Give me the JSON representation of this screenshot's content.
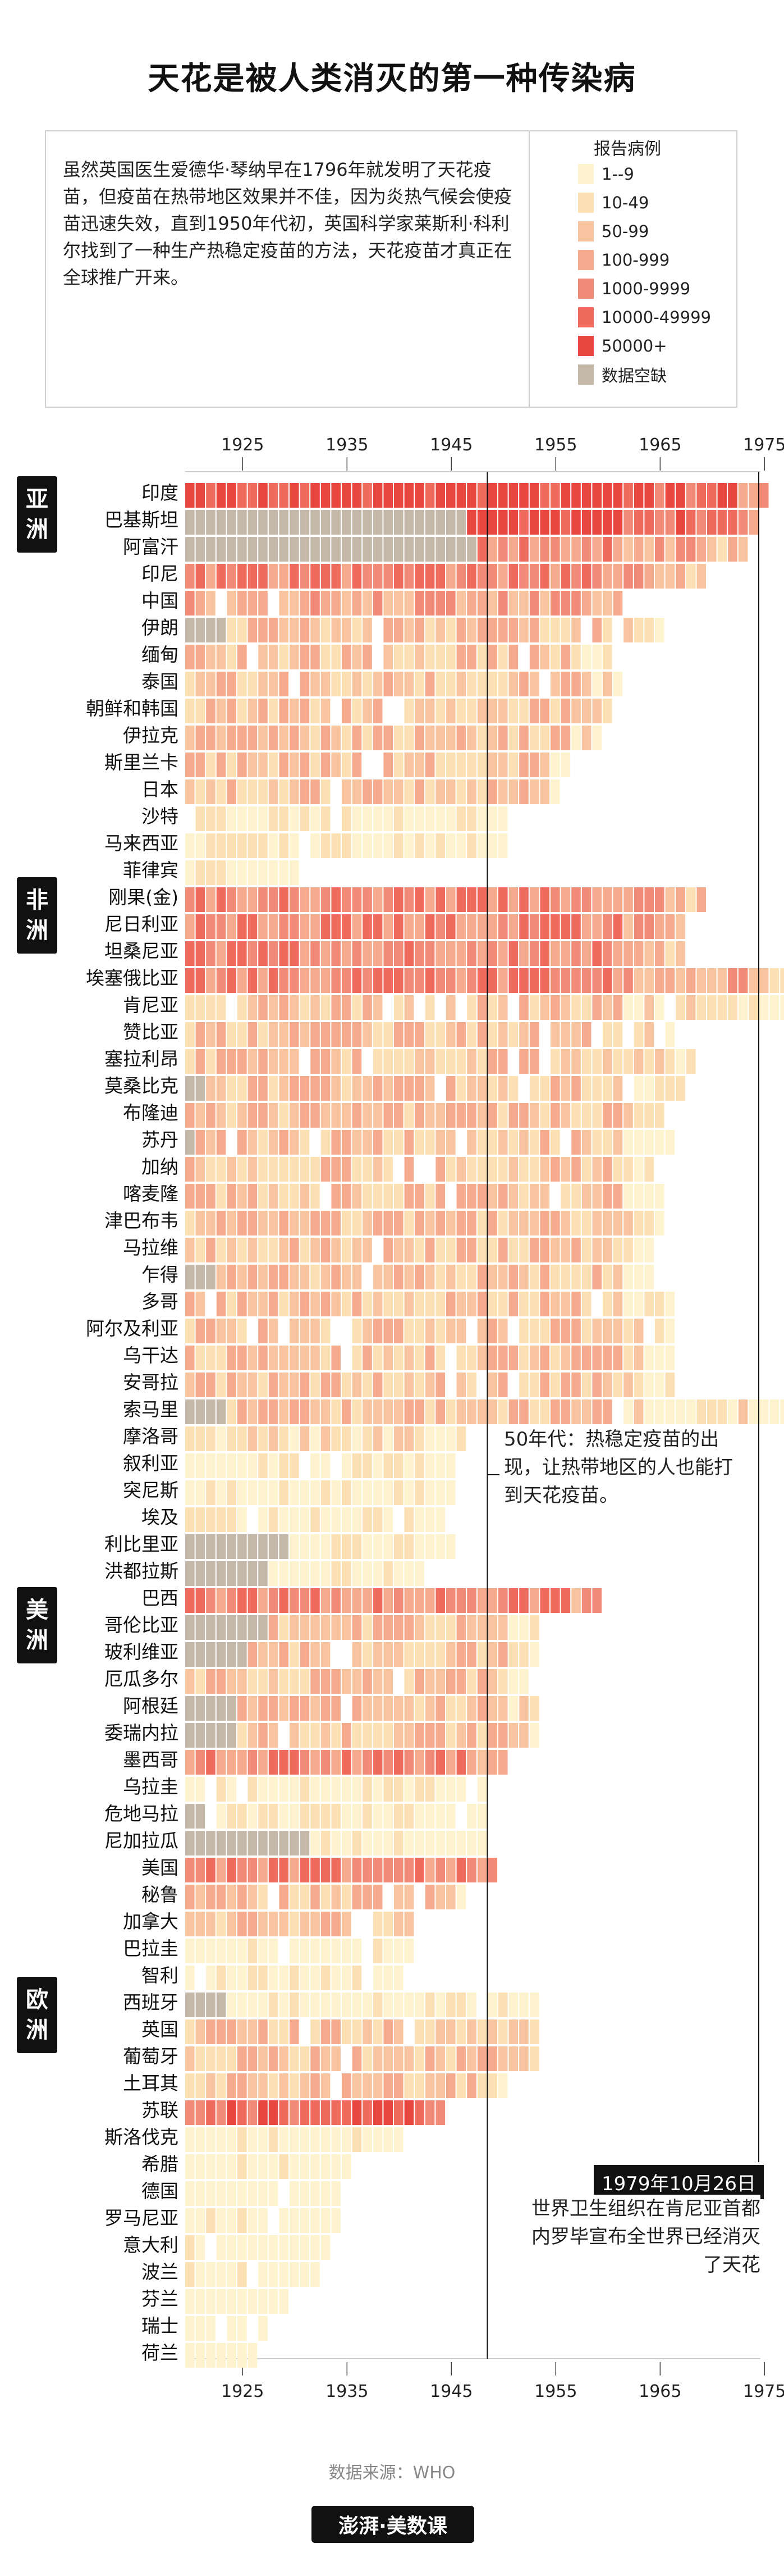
{
  "title": "天花是被人类消灭的第一种传染病",
  "intro": "虽然英国医生爱德华·琴纳早在1796年就发明了天花疫苗，但疫苗在热带地区效果并不佳，因为炎热气候会使疫苗迅速失效，直到1950年代初，英国科学家莱斯利·科利尔找到了一种生产热稳定疫苗的方法，天花疫苗才真正在全球推广开来。",
  "legend": {
    "title": "报告病例",
    "items": [
      {
        "label": "1--9",
        "color": "#fdf3cf"
      },
      {
        "label": "10-49",
        "color": "#fbe0b3"
      },
      {
        "label": "50-99",
        "color": "#f8c4a0"
      },
      {
        "label": "100-999",
        "color": "#f5aa8e"
      },
      {
        "label": "1000-9999",
        "color": "#f28a78"
      },
      {
        "label": "10000-49999",
        "color": "#ee6b5e"
      },
      {
        "label": "50000+",
        "color": "#e8473f"
      },
      {
        "label": "数据空缺",
        "color": "#c4b8a8"
      }
    ]
  },
  "continents": [
    {
      "label": "亚洲",
      "key": "asia"
    },
    {
      "label": "非洲",
      "key": "africa"
    },
    {
      "label": "美洲",
      "key": "americas"
    },
    {
      "label": "欧洲",
      "key": "europe"
    }
  ],
  "annotation_1950s": "50年代：热稳定疫苗的出现，让热带地区的人也能打到天花疫苗。",
  "eradication_date": "1979年10月26日",
  "eradication_text": "世界卫生组织在肯尼亚首都内罗毕宣布全世界已经消灭了天花",
  "source": "数据来源：WHO",
  "brand": "澎湃·美数课",
  "chart_data": {
    "type": "heatmap",
    "x_range": [
      1920,
      1978
    ],
    "x_ticks": [
      1925,
      1935,
      1945,
      1955,
      1965,
      1975
    ],
    "vertical_marker_year": 1949,
    "eradication_year": 1979,
    "rows": [
      {
        "country": "印度",
        "continent": "asia",
        "gap_end": null,
        "start": 1920,
        "end": 1975,
        "peak": 6,
        "fade": 0
      },
      {
        "country": "巴基斯坦",
        "continent": "asia",
        "gap_end": 1946,
        "start": 1920,
        "end": 1974,
        "peak": 6,
        "fade": 0
      },
      {
        "country": "阿富汗",
        "continent": "asia",
        "gap_end": 1947,
        "start": 1920,
        "end": 1973,
        "peak": 5,
        "fade": 1
      },
      {
        "country": "印尼",
        "continent": "asia",
        "gap_end": null,
        "start": 1920,
        "end": 1969,
        "peak": 5,
        "fade": 1
      },
      {
        "country": "中国",
        "continent": "asia",
        "gap_end": null,
        "start": 1920,
        "end": 1961,
        "peak": 5,
        "fade": 2
      },
      {
        "country": "伊朗",
        "continent": "asia",
        "gap_end": 1923,
        "start": 1920,
        "end": 1965,
        "peak": 4,
        "fade": 2
      },
      {
        "country": "缅甸",
        "continent": "asia",
        "gap_end": null,
        "start": 1920,
        "end": 1960,
        "peak": 4,
        "fade": 2
      },
      {
        "country": "泰国",
        "continent": "asia",
        "gap_end": null,
        "start": 1920,
        "end": 1961,
        "peak": 4,
        "fade": 2
      },
      {
        "country": "朝鲜和韩国",
        "continent": "asia",
        "gap_end": null,
        "start": 1920,
        "end": 1960,
        "peak": 4,
        "fade": 2
      },
      {
        "country": "伊拉克",
        "continent": "asia",
        "gap_end": null,
        "start": 1920,
        "end": 1959,
        "peak": 4,
        "fade": 2
      },
      {
        "country": "斯里兰卡",
        "continent": "asia",
        "gap_end": null,
        "start": 1920,
        "end": 1956,
        "peak": 4,
        "fade": 2
      },
      {
        "country": "日本",
        "continent": "asia",
        "gap_end": null,
        "start": 1920,
        "end": 1955,
        "peak": 4,
        "fade": 2
      },
      {
        "country": "沙特",
        "continent": "asia",
        "gap_end": null,
        "start": 1920,
        "end": 1950,
        "peak": 3,
        "fade": 3
      },
      {
        "country": "马来西亚",
        "continent": "asia",
        "gap_end": null,
        "start": 1920,
        "end": 1950,
        "peak": 3,
        "fade": 3
      },
      {
        "country": "菲律宾",
        "continent": "asia",
        "gap_end": null,
        "start": 1920,
        "end": 1930,
        "peak": 3,
        "fade": 3
      },
      {
        "country": "刚果(金)",
        "continent": "africa",
        "gap_end": null,
        "start": 1920,
        "end": 1969,
        "peak": 5,
        "fade": 1
      },
      {
        "country": "尼日利亚",
        "continent": "africa",
        "gap_end": null,
        "start": 1920,
        "end": 1967,
        "peak": 5,
        "fade": 1
      },
      {
        "country": "坦桑尼亚",
        "continent": "africa",
        "gap_end": null,
        "start": 1920,
        "end": 1967,
        "peak": 5,
        "fade": 1
      },
      {
        "country": "埃塞俄比亚",
        "continent": "africa",
        "gap_end": null,
        "start": 1920,
        "end": 1977,
        "peak": 5,
        "fade": 1
      },
      {
        "country": "肯尼亚",
        "continent": "africa",
        "gap_end": null,
        "start": 1920,
        "end": 1977,
        "peak": 4,
        "fade": 2
      },
      {
        "country": "赞比亚",
        "continent": "africa",
        "gap_end": null,
        "start": 1920,
        "end": 1967,
        "peak": 4,
        "fade": 2
      },
      {
        "country": "塞拉利昂",
        "continent": "africa",
        "gap_end": null,
        "start": 1920,
        "end": 1968,
        "peak": 4,
        "fade": 2
      },
      {
        "country": "莫桑比克",
        "continent": "africa",
        "gap_end": 1921,
        "start": 1920,
        "end": 1967,
        "peak": 4,
        "fade": 2
      },
      {
        "country": "布隆迪",
        "continent": "africa",
        "gap_end": null,
        "start": 1920,
        "end": 1966,
        "peak": 4,
        "fade": 2
      },
      {
        "country": "苏丹",
        "continent": "africa",
        "gap_end": 1920,
        "start": 1920,
        "end": 1966,
        "peak": 4,
        "fade": 2
      },
      {
        "country": "加纳",
        "continent": "africa",
        "gap_end": null,
        "start": 1920,
        "end": 1964,
        "peak": 4,
        "fade": 2
      },
      {
        "country": "喀麦隆",
        "continent": "africa",
        "gap_end": null,
        "start": 1920,
        "end": 1965,
        "peak": 4,
        "fade": 2
      },
      {
        "country": "津巴布韦",
        "continent": "africa",
        "gap_end": null,
        "start": 1920,
        "end": 1965,
        "peak": 4,
        "fade": 2
      },
      {
        "country": "马拉维",
        "continent": "africa",
        "gap_end": null,
        "start": 1920,
        "end": 1964,
        "peak": 4,
        "fade": 2
      },
      {
        "country": "乍得",
        "continent": "africa",
        "gap_end": 1922,
        "start": 1920,
        "end": 1964,
        "peak": 4,
        "fade": 2
      },
      {
        "country": "多哥",
        "continent": "africa",
        "gap_end": null,
        "start": 1920,
        "end": 1966,
        "peak": 4,
        "fade": 2
      },
      {
        "country": "阿尔及利亚",
        "continent": "africa",
        "gap_end": null,
        "start": 1920,
        "end": 1966,
        "peak": 4,
        "fade": 2
      },
      {
        "country": "乌干达",
        "continent": "africa",
        "gap_end": null,
        "start": 1920,
        "end": 1966,
        "peak": 4,
        "fade": 2
      },
      {
        "country": "安哥拉",
        "continent": "africa",
        "gap_end": null,
        "start": 1920,
        "end": 1966,
        "peak": 4,
        "fade": 2
      },
      {
        "country": "索马里",
        "continent": "africa",
        "gap_end": 1923,
        "start": 1920,
        "end": 1977,
        "peak": 4,
        "fade": 2
      },
      {
        "country": "摩洛哥",
        "continent": "africa",
        "gap_end": null,
        "start": 1920,
        "end": 1946,
        "peak": 4,
        "fade": 3
      },
      {
        "country": "叙利亚",
        "continent": "africa",
        "gap_end": null,
        "start": 1920,
        "end": 1945,
        "peak": 3,
        "fade": 3
      },
      {
        "country": "突尼斯",
        "continent": "africa",
        "gap_end": null,
        "start": 1920,
        "end": 1945,
        "peak": 3,
        "fade": 3
      },
      {
        "country": "埃及",
        "continent": "africa",
        "gap_end": null,
        "start": 1920,
        "end": 1944,
        "peak": 3,
        "fade": 3
      },
      {
        "country": "利比里亚",
        "continent": "africa",
        "gap_end": 1929,
        "start": 1920,
        "end": 1945,
        "peak": 3,
        "fade": 3
      },
      {
        "country": "洪都拉斯",
        "continent": "africa",
        "gap_end": 1927,
        "start": 1920,
        "end": 1942,
        "peak": 3,
        "fade": 3
      },
      {
        "country": "巴西",
        "continent": "americas",
        "gap_end": null,
        "start": 1920,
        "end": 1959,
        "peak": 5,
        "fade": 1
      },
      {
        "country": "哥伦比亚",
        "continent": "americas",
        "gap_end": 1927,
        "start": 1920,
        "end": 1953,
        "peak": 4,
        "fade": 2
      },
      {
        "country": "玻利维亚",
        "continent": "americas",
        "gap_end": 1925,
        "start": 1920,
        "end": 1953,
        "peak": 4,
        "fade": 2
      },
      {
        "country": "厄瓜多尔",
        "continent": "americas",
        "gap_end": null,
        "start": 1920,
        "end": 1953,
        "peak": 4,
        "fade": 2
      },
      {
        "country": "阿根廷",
        "continent": "americas",
        "gap_end": 1924,
        "start": 1920,
        "end": 1953,
        "peak": 4,
        "fade": 2
      },
      {
        "country": "委瑞内拉",
        "continent": "americas",
        "gap_end": 1924,
        "start": 1920,
        "end": 1953,
        "peak": 4,
        "fade": 2
      },
      {
        "country": "墨西哥",
        "continent": "americas",
        "gap_end": null,
        "start": 1920,
        "end": 1950,
        "peak": 5,
        "fade": 1
      },
      {
        "country": "乌拉圭",
        "continent": "americas",
        "gap_end": null,
        "start": 1920,
        "end": 1948,
        "peak": 3,
        "fade": 3
      },
      {
        "country": "危地马拉",
        "continent": "americas",
        "gap_end": 1921,
        "start": 1920,
        "end": 1948,
        "peak": 3,
        "fade": 3
      },
      {
        "country": "尼加拉瓜",
        "continent": "americas",
        "gap_end": 1931,
        "start": 1920,
        "end": 1948,
        "peak": 3,
        "fade": 3
      },
      {
        "country": "美国",
        "continent": "americas",
        "gap_end": null,
        "start": 1920,
        "end": 1949,
        "peak": 5,
        "fade": 1
      },
      {
        "country": "秘鲁",
        "continent": "americas",
        "gap_end": null,
        "start": 1920,
        "end": 1946,
        "peak": 4,
        "fade": 2
      },
      {
        "country": "加拿大",
        "continent": "americas",
        "gap_end": null,
        "start": 1920,
        "end": 1941,
        "peak": 4,
        "fade": 2
      },
      {
        "country": "巴拉圭",
        "continent": "americas",
        "gap_end": null,
        "start": 1920,
        "end": 1941,
        "peak": 3,
        "fade": 3
      },
      {
        "country": "智利",
        "continent": "americas",
        "gap_end": null,
        "start": 1920,
        "end": 1940,
        "peak": 3,
        "fade": 3
      },
      {
        "country": "西班牙",
        "continent": "europe",
        "gap_end": 1923,
        "start": 1920,
        "end": 1953,
        "peak": 3,
        "fade": 3
      },
      {
        "country": "英国",
        "continent": "europe",
        "gap_end": null,
        "start": 1920,
        "end": 1953,
        "peak": 4,
        "fade": 2
      },
      {
        "country": "葡萄牙",
        "continent": "europe",
        "gap_end": null,
        "start": 1920,
        "end": 1953,
        "peak": 4,
        "fade": 2
      },
      {
        "country": "土耳其",
        "continent": "europe",
        "gap_end": null,
        "start": 1920,
        "end": 1950,
        "peak": 4,
        "fade": 2
      },
      {
        "country": "苏联",
        "continent": "europe",
        "gap_end": null,
        "start": 1920,
        "end": 1944,
        "peak": 6,
        "fade": 1
      },
      {
        "country": "斯洛伐克",
        "continent": "europe",
        "gap_end": null,
        "start": 1920,
        "end": 1940,
        "peak": 3,
        "fade": 3
      },
      {
        "country": "希腊",
        "continent": "europe",
        "gap_end": null,
        "start": 1920,
        "end": 1935,
        "peak": 3,
        "fade": 3
      },
      {
        "country": "德国",
        "continent": "europe",
        "gap_end": null,
        "start": 1920,
        "end": 1934,
        "peak": 2,
        "fade": 3
      },
      {
        "country": "罗马尼亚",
        "continent": "europe",
        "gap_end": null,
        "start": 1920,
        "end": 1934,
        "peak": 3,
        "fade": 3
      },
      {
        "country": "意大利",
        "continent": "europe",
        "gap_end": null,
        "start": 1920,
        "end": 1933,
        "peak": 3,
        "fade": 3
      },
      {
        "country": "波兰",
        "continent": "europe",
        "gap_end": null,
        "start": 1920,
        "end": 1932,
        "peak": 3,
        "fade": 3
      },
      {
        "country": "芬兰",
        "continent": "europe",
        "gap_end": null,
        "start": 1920,
        "end": 1929,
        "peak": 2,
        "fade": 3
      },
      {
        "country": "瑞士",
        "continent": "europe",
        "gap_end": null,
        "start": 1920,
        "end": 1927,
        "peak": 2,
        "fade": 3
      },
      {
        "country": "荷兰",
        "continent": "europe",
        "gap_end": null,
        "start": 1920,
        "end": 1926,
        "peak": 2,
        "fade": 3
      }
    ]
  }
}
